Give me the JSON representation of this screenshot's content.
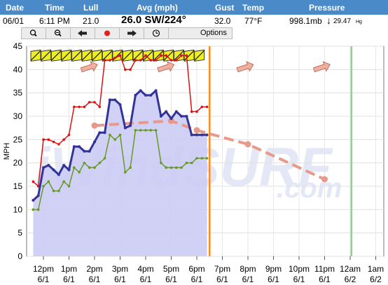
{
  "header": {
    "cols": [
      "Date",
      "Time",
      "Lull",
      "Avg (mph)",
      "Gust",
      "Temp",
      "Pressure"
    ]
  },
  "current": {
    "date": "06/01",
    "time": "6:11 PM",
    "lull": "21.0",
    "avg": "26.0 SW/224°",
    "gust": "32.0",
    "temp": "77°F",
    "pressure": "998.1mb",
    "pressure_arrow": "↓",
    "pressure_hg": "29.47",
    "pressure_hg_unit": "Hg"
  },
  "toolbar": {
    "options_label": "Options",
    "buttons": [
      "zoom-in-icon",
      "zoom-out-icon",
      "back-arrow-icon",
      "record-icon",
      "forward-arrow-icon",
      "clock-icon"
    ]
  },
  "watermark": {
    "line1": "iWindSURF",
    "line2": ".com"
  },
  "colors": {
    "header": "#4a8ac8",
    "avg": "#333399",
    "gust": "#dd1111",
    "lull": "#669922",
    "fill": "#ccccf5",
    "forecast": "#e89a8a",
    "now_line": "#ff8c1a",
    "day_line": "#99cc99",
    "barb": "#eeee22"
  },
  "chart_data": {
    "type": "line",
    "ylabel": "MPH",
    "ylim": [
      0,
      45
    ],
    "yticks": [
      0,
      5,
      10,
      15,
      20,
      25,
      30,
      35,
      40,
      45
    ],
    "xticks": [
      {
        "t": 12,
        "time": "12pm",
        "date": "6/1"
      },
      {
        "t": 13,
        "time": "1pm",
        "date": "6/1"
      },
      {
        "t": 14,
        "time": "2pm",
        "date": "6/1"
      },
      {
        "t": 15,
        "time": "3pm",
        "date": "6/1"
      },
      {
        "t": 16,
        "time": "4pm",
        "date": "6/1"
      },
      {
        "t": 17,
        "time": "5pm",
        "date": "6/1"
      },
      {
        "t": 18,
        "time": "6pm",
        "date": "6/1"
      },
      {
        "t": 19,
        "time": "7pm",
        "date": "6/1"
      },
      {
        "t": 20,
        "time": "8pm",
        "date": "6/1"
      },
      {
        "t": 21,
        "time": "9pm",
        "date": "6/1"
      },
      {
        "t": 22,
        "time": "10pm",
        "date": "6/1"
      },
      {
        "t": 23,
        "time": "11pm",
        "date": "6/1"
      },
      {
        "t": 24,
        "time": "12am",
        "date": "6/2"
      },
      {
        "t": 25,
        "time": "1am",
        "date": "6/2"
      }
    ],
    "now_t": 18.5,
    "day_t": 24.05,
    "series": [
      {
        "key": "avg",
        "x": [
          11.6,
          11.8,
          12.0,
          12.2,
          12.4,
          12.6,
          12.8,
          13.0,
          13.2,
          13.4,
          13.6,
          13.8,
          14.0,
          14.2,
          14.4,
          14.6,
          14.8,
          15.0,
          15.2,
          15.4,
          15.6,
          15.8,
          16.0,
          16.2,
          16.4,
          16.6,
          16.8,
          17.0,
          17.2,
          17.4,
          17.6,
          17.8,
          18.0,
          18.2,
          18.4
        ],
        "y": [
          12,
          13,
          19,
          19.5,
          18.5,
          17.5,
          19.5,
          18.5,
          23.5,
          23.5,
          22.5,
          22.5,
          24.5,
          26.5,
          26.5,
          33.5,
          33.5,
          32.5,
          27.5,
          28,
          34.5,
          35.5,
          34.5,
          34.5,
          35.5,
          30,
          31,
          29.5,
          31,
          30,
          30,
          26,
          26,
          26,
          26
        ]
      },
      {
        "key": "gust",
        "x": [
          11.6,
          11.8,
          12.0,
          12.2,
          12.4,
          12.6,
          12.8,
          13.0,
          13.2,
          13.4,
          13.6,
          13.8,
          14.0,
          14.2,
          14.4,
          14.6,
          14.8,
          15.0,
          15.2,
          15.4,
          15.6,
          15.8,
          16.0,
          16.2,
          16.4,
          16.6,
          16.8,
          17.0,
          17.2,
          17.4,
          17.6,
          17.8,
          18.0,
          18.2,
          18.4
        ],
        "y": [
          16,
          15,
          25,
          25,
          24.5,
          24,
          25,
          26,
          32,
          32,
          32,
          33,
          33,
          32,
          42,
          42,
          42.5,
          43,
          40,
          40,
          42,
          42,
          43,
          42,
          42,
          43,
          43,
          42,
          42,
          43,
          43,
          31,
          31,
          32,
          32
        ]
      },
      {
        "key": "lull",
        "x": [
          11.6,
          11.8,
          12.0,
          12.2,
          12.4,
          12.6,
          12.8,
          13.0,
          13.2,
          13.4,
          13.6,
          13.8,
          14.0,
          14.2,
          14.4,
          14.6,
          14.8,
          15.0,
          15.2,
          15.4,
          15.6,
          15.8,
          16.0,
          16.2,
          16.4,
          16.6,
          16.8,
          17.0,
          17.2,
          17.4,
          17.6,
          17.8,
          18.0,
          18.2,
          18.4
        ],
        "y": [
          10,
          10,
          15,
          16,
          14,
          14,
          16,
          15,
          19,
          18,
          20,
          19,
          19,
          20,
          21,
          26,
          25,
          26,
          18,
          19,
          27,
          27,
          27,
          27,
          27,
          20,
          19,
          19,
          19,
          19,
          20,
          20,
          21,
          21,
          21
        ]
      },
      {
        "key": "forecast",
        "x": [
          14.0,
          17.0,
          18.0,
          20.0,
          23.0
        ],
        "y": [
          28,
          29,
          27,
          24,
          16.5
        ]
      }
    ],
    "barbs": {
      "x": [
        11.7,
        12.1,
        12.5,
        12.9,
        13.3,
        13.7,
        14.1,
        14.5,
        14.9,
        15.3,
        15.7,
        16.1,
        16.5,
        16.9,
        17.3,
        17.7,
        18.1
      ],
      "y": 43
    },
    "arrows": [
      {
        "t": 13.8,
        "y": 40.5
      },
      {
        "t": 16.8,
        "y": 40.5
      },
      {
        "t": 19.9,
        "y": 40.5
      },
      {
        "t": 22.9,
        "y": 40.5
      }
    ]
  }
}
